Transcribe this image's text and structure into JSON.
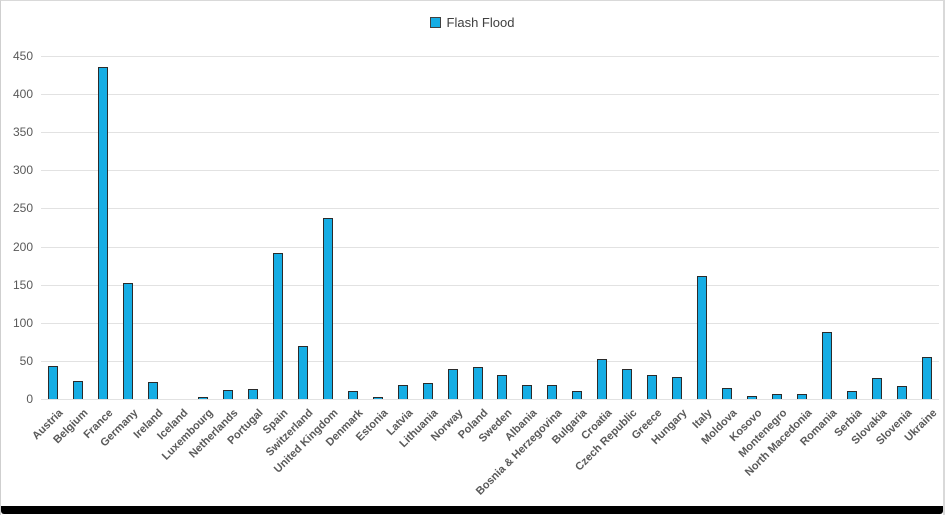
{
  "legend": {
    "label": "Flash Flood",
    "swatch_color": "#16ade4"
  },
  "colors": {
    "bar_fill": "#16ade4",
    "bar_border": "#2b2b2b",
    "gridline": "#e2e2e2",
    "axis_text": "#595959",
    "title_text": "#404040",
    "bottom_bar": "#000000"
  },
  "chart_data": {
    "type": "bar",
    "title": "Flash Flood",
    "xlabel": "",
    "ylabel": "",
    "ylim": [
      0,
      450
    ],
    "ytick_step": 50,
    "yticks": [
      0,
      50,
      100,
      150,
      200,
      250,
      300,
      350,
      400,
      450
    ],
    "grid": true,
    "legend_position": "top-center",
    "categories": [
      "Austria",
      "Belgium",
      "France",
      "Germany",
      "Ireland",
      "Iceland",
      "Luxembourg",
      "Netherlands",
      "Portugal",
      "Spain",
      "Switzerland",
      "United Kingdom",
      "Denmark",
      "Estonia",
      "Latvia",
      "Lithuania",
      "Norway",
      "Poland",
      "Sweden",
      "Albania",
      "Bosnia & Herzegovina",
      "Bulgaria",
      "Croatia",
      "Czech Republic",
      "Greece",
      "Hungary",
      "Italy",
      "Moldova",
      "Kosovo",
      "Montenegro",
      "North Macedonia",
      "Romania",
      "Serbia",
      "Slovakia",
      "Slovenia",
      "Ukraine"
    ],
    "values": [
      43,
      23,
      436,
      152,
      22,
      0,
      3,
      12,
      13,
      191,
      70,
      237,
      10,
      3,
      18,
      21,
      40,
      42,
      32,
      18,
      18,
      10,
      53,
      39,
      31,
      29,
      161,
      14,
      4,
      6,
      7,
      88,
      11,
      28,
      17,
      55
    ]
  }
}
